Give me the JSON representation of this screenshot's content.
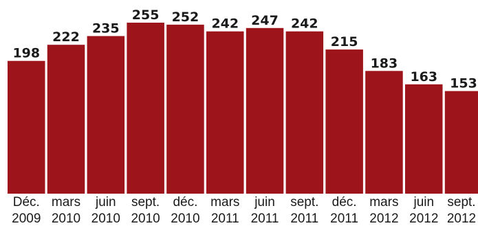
{
  "chart_data": {
    "type": "bar",
    "title": "",
    "xlabel": "",
    "ylabel": "",
    "categories": [
      [
        "Déc.",
        "2009"
      ],
      [
        "mars",
        "2010"
      ],
      [
        "juin",
        "2010"
      ],
      [
        "sept.",
        "2010"
      ],
      [
        "déc.",
        "2010"
      ],
      [
        "mars",
        "2011"
      ],
      [
        "juin",
        "2011"
      ],
      [
        "sept.",
        "2011"
      ],
      [
        "déc.",
        "2011"
      ],
      [
        "mars",
        "2012"
      ],
      [
        "juin",
        "2012"
      ],
      [
        "sept.",
        "2012"
      ]
    ],
    "values": [
      198,
      222,
      235,
      255,
      252,
      242,
      247,
      242,
      215,
      183,
      163,
      153
    ],
    "ylim": [
      0,
      255
    ],
    "grid": false,
    "data_labels": true,
    "bar_color": "#9e141b"
  }
}
